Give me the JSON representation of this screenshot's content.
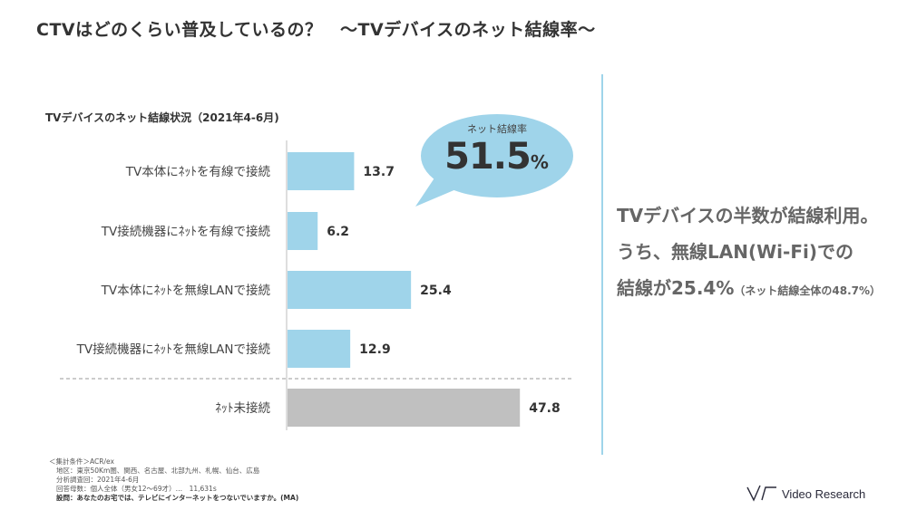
{
  "page": {
    "title": "CTVはどのくらい普及しているの？　～TVデバイスのネット結線率～"
  },
  "chart_data": {
    "type": "bar",
    "orientation": "horizontal",
    "title": "TVデバイスのネット結線状況（2021年4-6月)",
    "categories": [
      "TV本体にﾈｯﾄを有線で接続",
      "TV接続機器にﾈｯﾄを有線で接続",
      "TV本体にﾈｯﾄを無線LANで接続",
      "TV接続機器にﾈｯﾄを無線LANで接続",
      "ﾈｯﾄ未接続"
    ],
    "values": [
      13.7,
      6.2,
      25.4,
      12.9,
      47.8
    ],
    "value_labels": [
      "13.7",
      "6.2",
      "25.4",
      "12.9",
      "47.8"
    ],
    "colors": [
      "#9fd4ea",
      "#9fd4ea",
      "#9fd4ea",
      "#9fd4ea",
      "#c0c0c0"
    ],
    "grid": false,
    "separator_before_last": true
  },
  "callout": {
    "label": "ネット結線率",
    "value": "51.5",
    "unit": "%",
    "color": "#9fd4ea"
  },
  "summary": {
    "line1": "TVデバイスの半数が結線利用。",
    "line2": "うち、無線LAN(Wi-Fi)での",
    "line3_main": "結線が25.4%",
    "line3_note": "（ネット結線全体の48.7%）"
  },
  "notes": {
    "line1": "＜集計条件＞ACR/ex",
    "line2": "地区：東京50Km圏、関西、名古屋、北部九州、札幌、仙台、広島",
    "line3": "分析調査回：2021年4-6月",
    "line4": "回答母数：個人全体（男女12～69才）…　11,631s",
    "line5": "設問：あなたのお宅では、テレビにインターネットをつないでいますか。(MA)"
  },
  "logo": {
    "text": "Video Research"
  }
}
